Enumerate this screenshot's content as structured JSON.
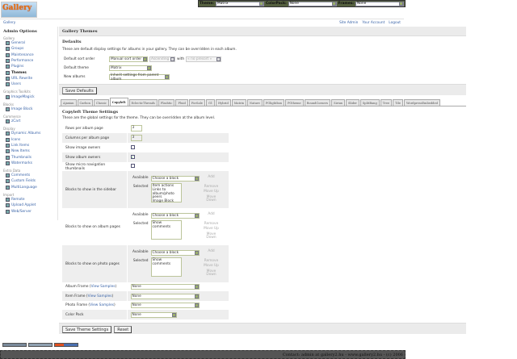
{
  "logo": "Gallery",
  "topbar": {
    "theme_label": "Theme:",
    "theme_value": "Matrix",
    "colorpack_label": "ColorPack:",
    "colorpack_value": "None",
    "frames_label": "Frames:",
    "frames_value": "None"
  },
  "breadcrumb": "Gallery",
  "header_links": [
    "Site Admin",
    "Your Account",
    "Logout"
  ],
  "sidebar": {
    "title": "Admin Options",
    "groups": [
      {
        "label": "Gallery",
        "items": [
          "General",
          "Groups",
          "Maintenance",
          "Performance",
          "Plugins",
          "Themes",
          "URL Rewrite",
          "Users"
        ]
      },
      {
        "label": "Graphics Toolkits",
        "items": [
          "ImageMagick"
        ]
      },
      {
        "label": "Blocks",
        "items": [
          "Image Block"
        ]
      },
      {
        "label": "Commerce",
        "items": [
          "zCart"
        ]
      },
      {
        "label": "Display",
        "items": [
          "Dynamic Albums",
          "Icons",
          "Link Items",
          "New Items",
          "Thumbnails",
          "Watermarks"
        ]
      },
      {
        "label": "Extra Data",
        "items": [
          "Comments",
          "Custom Fields",
          "MultiLanguage"
        ]
      },
      {
        "label": "Import",
        "items": [
          "Remote",
          "Upload Applet",
          "Web/Server"
        ]
      }
    ],
    "current": "Themes"
  },
  "main": {
    "title": "Gallery Themes",
    "defaults_title": "Defaults",
    "defaults_desc": "These are default display settings for albums in your gallery. They can be overridden in each album.",
    "sort_label": "Default sort order",
    "sort_value": "Manual sort order",
    "sort_dir": "Ascending",
    "with_label": "with",
    "presort": "« no presort »",
    "theme_label": "Default theme",
    "theme_value": "Matrix",
    "new_albums_label": "New albums",
    "new_albums_value": "Inherit settings from parent album",
    "save_defaults": "Save Defaults",
    "tabs": [
      "Ajaxian",
      "Carbon",
      "Classic",
      "Copyleft",
      "EclecticThreads",
      "Flashtic",
      "Fluid",
      "ForSale",
      "G1",
      "Hybrid",
      "Matrix",
      "Nature",
      "PGlightbox",
      "PGtheme",
      "RoundCorners",
      "Siriux",
      "Slider",
      "SplitBang",
      "Tree",
      "Tile",
      "WordpressEmbedded"
    ],
    "active_tab": "Copyleft",
    "settings_title": "Copyleft Theme Settings",
    "settings_desc": "These are the global settings for the theme. They can be overridden at the album level.",
    "rows_label": "Rows per album page",
    "rows_value": "3",
    "cols_label": "Columns per album page",
    "cols_value": "3",
    "image_owners_label": "Show image owners",
    "image_owners": false,
    "album_owners_label": "Show album owners",
    "album_owners": true,
    "micro_nav_label": "Show micro navigation thumbnails",
    "micro_nav": false,
    "available_label": "Available",
    "selected_label": "Selected",
    "choose": "Choose a block",
    "add": "Add",
    "remove": "Remove",
    "move_up": "Move Up",
    "move_down": "Move Down",
    "sidebar_blocks_label": "Blocks to show in the sidebar",
    "sidebar_blocks": [
      "Item actions",
      "Links to album/photo peers",
      "Image Block"
    ],
    "album_blocks_label": "Blocks to show on album pages",
    "album_blocks": [
      "Show comments"
    ],
    "photo_blocks_label": "Blocks to show on photo pages",
    "photo_blocks": [
      "Show comments"
    ],
    "album_frame_label": "Album Frame",
    "item_frame_label": "Item Frame",
    "photo_frame_label": "Photo Frame",
    "view_samples": "View Samples",
    "color_pack_label": "Color Pack",
    "none": "None",
    "save_theme": "Save Theme Settings",
    "reset": "Reset"
  },
  "footer": "Contact: admin at gallery2.hu - www.gallery2.hu - (c) 2006"
}
